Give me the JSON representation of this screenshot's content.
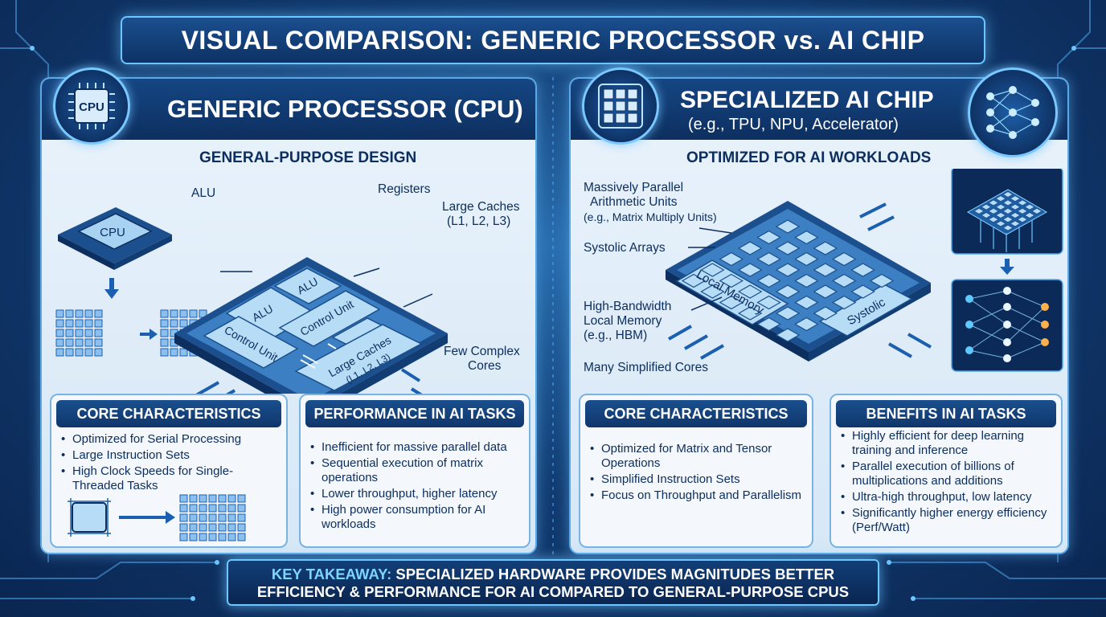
{
  "title": "VISUAL COMPARISON: GENERIC PROCESSOR vs. AI CHIP",
  "left": {
    "icon_text": "CPU",
    "header": "GENERIC PROCESSOR (CPU)",
    "subheading": "GENERAL-PURPOSE DESIGN",
    "chip_text": "CPU",
    "labels": {
      "alu": "ALU",
      "registers": "Registers",
      "large_caches": "Large Caches",
      "large_caches_levels": "(L1, L2, L3)",
      "few_cores_1": "Few Complex",
      "few_cores_2": "Cores"
    },
    "die_labels": {
      "alu_1": "ALU",
      "alu_2": "ALU",
      "control_unit_1": "Control Unit",
      "control_unit_2": "Control Unit",
      "caches": "Large Caches",
      "caches_levels": "(L1, L2, L3)"
    },
    "core_characteristics": {
      "heading": "CORE CHARACTERISTICS",
      "items": [
        "Optimized for Serial Processing",
        "Large Instruction Sets",
        "High Clock Speeds for Single-Threaded Tasks"
      ]
    },
    "performance": {
      "heading": "PERFORMANCE IN AI TASKS",
      "items": [
        "Inefficient for massive parallel data",
        "Sequential execution of matrix operations",
        "Lower throughput, higher latency",
        "High power consumption for AI workloads"
      ]
    }
  },
  "right": {
    "header": "SPECIALIZED AI CHIP",
    "header_sub": "(e.g., TPU, NPU, Accelerator)",
    "subheading": "OPTIMIZED FOR AI WORKLOADS",
    "labels": {
      "parallel_1": "Massively Parallel",
      "parallel_2": "Arithmetic Units",
      "parallel_3": "(e.g., Matrix Multiply Units)",
      "systolic": "Systolic Arrays",
      "hbm_1": "High-Bandwidth",
      "hbm_2": "Local Memory",
      "hbm_3": "(e.g., HBM)",
      "simplified": "Many Simplified Cores"
    },
    "die_labels": {
      "local_memory": "Local Memory",
      "systolic": "Systolic"
    },
    "core_characteristics": {
      "heading": "CORE CHARACTERISTICS",
      "items": [
        "Optimized for Matrix and Tensor Operations",
        "Simplified Instruction Sets",
        "Focus on Throughput and Parallelism"
      ]
    },
    "benefits": {
      "heading": "BENEFITS IN AI TASKS",
      "items": [
        "Highly efficient for deep learning training and inference",
        "Parallel execution of billions of multiplications and additions",
        "Ultra-high throughput, low latency",
        "Significantly higher energy efficiency (Perf/Watt)"
      ]
    }
  },
  "takeaway": {
    "label": "KEY TAKEAWAY:",
    "line1": "SPECIALIZED HARDWARE PROVIDES MAGNITUDES BETTER",
    "line2": "EFFICIENCY & PERFORMANCE FOR AI COMPARED TO GENERAL-PURPOSE CPUS"
  },
  "colors": {
    "accent": "#6cc6ff",
    "navy": "#0d2f60",
    "chip": "#8dc0ea"
  }
}
